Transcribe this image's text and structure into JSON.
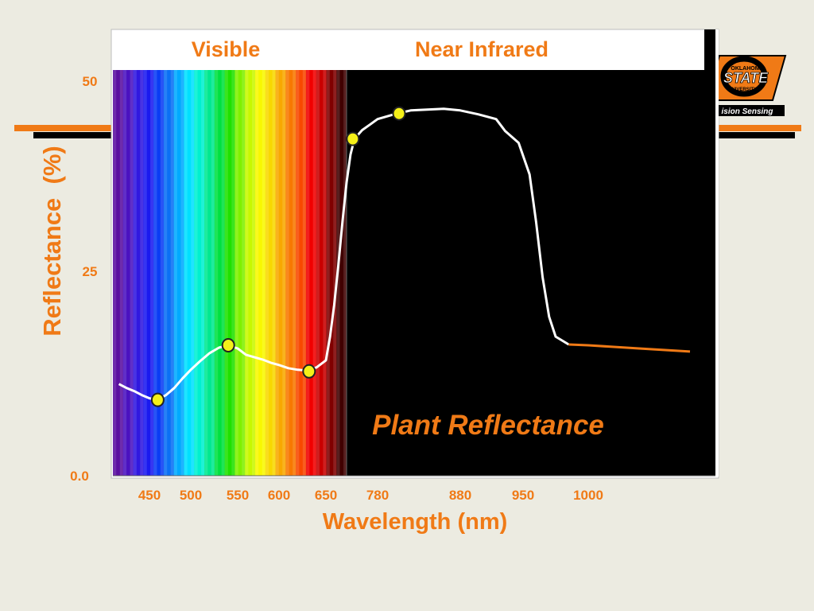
{
  "header": {
    "visible_label": "Visible",
    "nir_label": "Near Infrared"
  },
  "logo": {
    "university_top": "OKLAHOMA",
    "university_main": "STATE",
    "university_sub": "UNIVERSITY",
    "banner": "ision Sensing"
  },
  "colors": {
    "accent": "#f07a16",
    "background": "#ecebe1",
    "plot_bg": "#000000",
    "curve": "#ffffff",
    "marker": "#f5f018"
  },
  "chart_data": {
    "type": "line",
    "title": "Plant Reflectance",
    "xlabel": "Wavelength (nm)",
    "ylabel": "Reflectance  (%)",
    "ylim": [
      0,
      50
    ],
    "y_ticks": [
      "0.0",
      "25",
      "50"
    ],
    "x_ticks": [
      "450",
      "500",
      "550",
      "600",
      "650",
      "780",
      "880",
      "950",
      "1000"
    ],
    "grid": false,
    "series": [
      {
        "values": [
          [
            410,
            11.5
          ],
          [
            420,
            11.0
          ],
          [
            430,
            10.6
          ],
          [
            440,
            10.1
          ],
          [
            450,
            9.7
          ],
          [
            460,
            9.5
          ],
          [
            470,
            10.1
          ],
          [
            480,
            11.0
          ],
          [
            490,
            12.2
          ],
          [
            500,
            13.3
          ],
          [
            510,
            14.4
          ],
          [
            520,
            15.4
          ],
          [
            530,
            16.1
          ],
          [
            540,
            16.4
          ],
          [
            550,
            16.0
          ],
          [
            560,
            15.2
          ],
          [
            570,
            14.9
          ],
          [
            580,
            14.6
          ],
          [
            590,
            14.2
          ],
          [
            600,
            13.9
          ],
          [
            610,
            13.5
          ],
          [
            620,
            13.3
          ],
          [
            630,
            13.2
          ],
          [
            640,
            13.6
          ],
          [
            650,
            14.5
          ],
          [
            660,
            17.5
          ],
          [
            670,
            21.5
          ],
          [
            680,
            26.5
          ],
          [
            690,
            32.0
          ],
          [
            700,
            37.0
          ],
          [
            710,
            40.5
          ],
          [
            720,
            42.5
          ],
          [
            740,
            43.6
          ],
          [
            760,
            44.3
          ],
          [
            780,
            45.0
          ],
          [
            800,
            45.6
          ],
          [
            820,
            46.1
          ],
          [
            840,
            46.2
          ],
          [
            860,
            46.3
          ],
          [
            880,
            46.1
          ],
          [
            900,
            45.6
          ],
          [
            920,
            45.0
          ],
          [
            930,
            43.5
          ],
          [
            945,
            42.0
          ],
          [
            955,
            38.0
          ],
          [
            960,
            32.0
          ],
          [
            965,
            25.0
          ],
          [
            970,
            20.0
          ],
          [
            975,
            17.5
          ],
          [
            985,
            16.5
          ],
          [
            1000,
            16.4
          ],
          [
            1020,
            16.0
          ],
          [
            1040,
            15.6
          ]
        ]
      }
    ],
    "markers": [
      {
        "x": 460,
        "y": 9.5
      },
      {
        "x": 540,
        "y": 16.4
      },
      {
        "x": 632,
        "y": 13.1
      },
      {
        "x": 716,
        "y": 42.5
      },
      {
        "x": 806,
        "y": 45.7
      }
    ]
  }
}
